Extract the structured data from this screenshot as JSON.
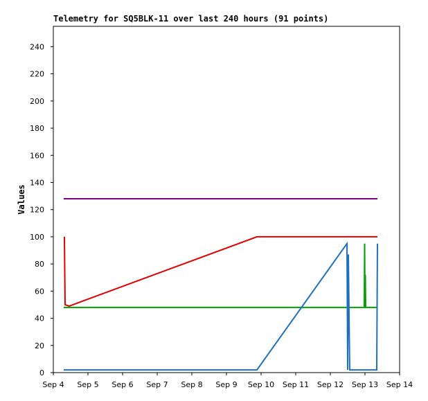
{
  "chart_data": {
    "type": "line",
    "title": "Telemetry for SQ5BLK-11 over last 240 hours (91 points)",
    "y_label": "Values",
    "xlim": [
      4,
      14
    ],
    "xticks": [
      {
        "value": 4,
        "label": "Sep 4"
      },
      {
        "value": 5,
        "label": "Sep 5"
      },
      {
        "value": 6,
        "label": "Sep 6"
      },
      {
        "value": 7,
        "label": "Sep 7"
      },
      {
        "value": 8,
        "label": "Sep 8"
      },
      {
        "value": 9,
        "label": "Sep 9"
      },
      {
        "value": 10,
        "label": "Sep 10"
      },
      {
        "value": 11,
        "label": "Sep 11"
      },
      {
        "value": 12,
        "label": "Sep 12"
      },
      {
        "value": 13,
        "label": "Sep 13"
      },
      {
        "value": 14,
        "label": "Sep 14"
      }
    ],
    "ylim": [
      0,
      255
    ],
    "yticks": [
      0,
      20,
      40,
      60,
      80,
      100,
      120,
      140,
      160,
      180,
      200,
      220,
      240
    ],
    "series": [
      {
        "color": "#800080",
        "x": [
          4.3,
          13.36
        ],
        "values": [
          128,
          128
        ]
      },
      {
        "color": "#e00000",
        "x": [
          4.32,
          4.34,
          4.46,
          9.88,
          13.36
        ],
        "values": [
          100,
          50,
          49,
          100,
          100
        ]
      },
      {
        "color": "#00a000",
        "x": [
          4.3,
          12.98,
          12.99,
          13.0,
          13.01,
          13.02,
          13.36
        ],
        "values": [
          48,
          48,
          95,
          48,
          72,
          48,
          48
        ]
      },
      {
        "color": "#1f6fbf",
        "x": [
          4.3,
          9.88,
          12.48,
          12.5,
          12.52,
          12.54,
          12.56,
          13.34,
          13.36
        ],
        "values": [
          2,
          2,
          95,
          2,
          87,
          42,
          2,
          2,
          95
        ]
      }
    ]
  }
}
